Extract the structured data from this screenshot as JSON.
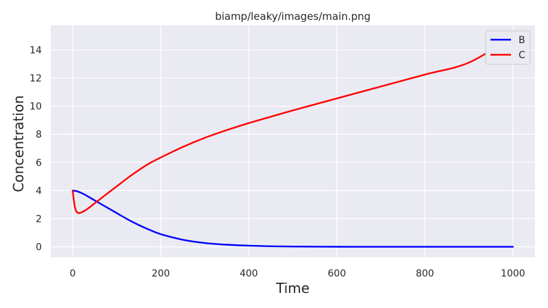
{
  "chart_data": {
    "type": "line",
    "title": "biamp/leaky/images/main.png",
    "xlabel": "Time",
    "ylabel": "Concentration",
    "xlim": [
      -50,
      1050
    ],
    "ylim": [
      -0.75,
      15.75
    ],
    "xticks": [
      0,
      200,
      400,
      600,
      800,
      1000
    ],
    "yticks": [
      0,
      2,
      4,
      6,
      8,
      10,
      12,
      14
    ],
    "grid": true,
    "legend_position": "top-right",
    "background": "#eaeaf2",
    "series": [
      {
        "name": "B",
        "color": "#0000ff",
        "x": [
          0,
          10,
          25,
          50,
          75,
          100,
          125,
          150,
          175,
          200,
          250,
          300,
          350,
          400,
          450,
          500,
          600,
          700,
          800,
          900,
          1000
        ],
        "y": [
          4.0,
          3.95,
          3.75,
          3.3,
          2.85,
          2.4,
          1.95,
          1.55,
          1.2,
          0.9,
          0.5,
          0.27,
          0.15,
          0.08,
          0.04,
          0.02,
          0.005,
          0.0,
          0.0,
          0.0,
          0.0
        ]
      },
      {
        "name": "C",
        "color": "#ff0000",
        "x": [
          0,
          3,
          6,
          10,
          15,
          20,
          30,
          40,
          50,
          75,
          100,
          125,
          150,
          175,
          200,
          250,
          300,
          350,
          400,
          450,
          500,
          600,
          700,
          800,
          900,
          1000
        ],
        "y": [
          4.0,
          3.2,
          2.7,
          2.45,
          2.4,
          2.45,
          2.62,
          2.85,
          3.1,
          3.7,
          4.3,
          4.9,
          5.45,
          5.95,
          6.35,
          7.1,
          7.75,
          8.3,
          8.8,
          9.25,
          9.7,
          10.55,
          11.4,
          12.25,
          13.1,
          14.95
        ]
      }
    ]
  }
}
